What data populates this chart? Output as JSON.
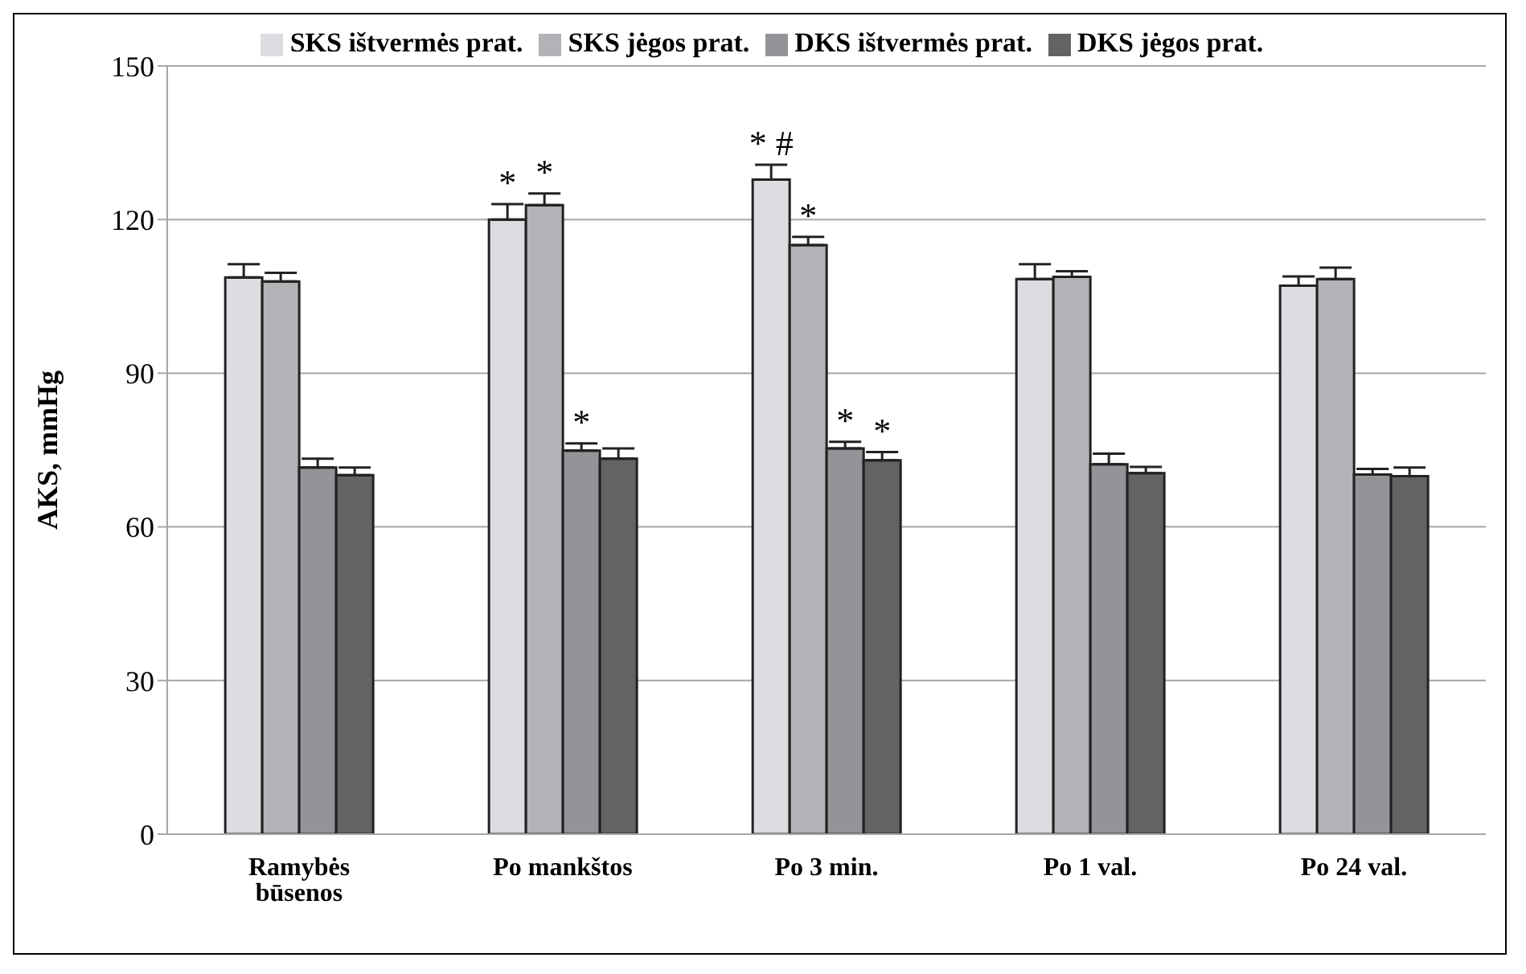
{
  "chart_data": {
    "type": "bar",
    "ylabel": "AKS, mmHg",
    "categories": [
      "Ramybės būsenos",
      "Po mankštos",
      "Po 3 min.",
      "Po 1 val.",
      "Po 24 val."
    ],
    "series": [
      {
        "name": "SKS ištvermės prat.",
        "color": "#dcdde0",
        "values": [
          108.7,
          120,
          127.8,
          108.4,
          107.1
        ],
        "errors": [
          [
            108.7,
            111.3
          ],
          [
            120,
            123
          ],
          [
            127.8,
            130.7
          ],
          [
            108.4,
            111.3
          ],
          [
            107.1,
            108.9
          ]
        ],
        "value_labels": [
          null,
          "*",
          "* #",
          null,
          null
        ]
      },
      {
        "name": "SKS jėgos prat.",
        "color": "#b2b3b7",
        "values": [
          107.9,
          122.8,
          115,
          108.8,
          108.4
        ],
        "errors": [
          [
            107.9,
            109.6
          ],
          [
            122.8,
            125.1
          ],
          [
            115,
            116.6
          ],
          [
            108.8,
            109.9
          ],
          [
            108.4,
            110.6
          ]
        ],
        "value_labels": [
          null,
          "*",
          "*",
          null,
          null
        ]
      },
      {
        "name": "DKS ištvermės prat.",
        "color": "#939498",
        "values": [
          71.6,
          74.9,
          75.3,
          72.2,
          70.2
        ],
        "errors": [
          [
            71.6,
            73.3
          ],
          [
            74.9,
            76.3
          ],
          [
            75.3,
            76.6
          ],
          [
            72.2,
            74.3
          ],
          [
            70.2,
            71.3
          ]
        ],
        "value_labels": [
          null,
          "*",
          "*",
          null,
          null
        ]
      },
      {
        "name": "DKS jėgos prat.",
        "color": "#636365",
        "values": [
          70.1,
          73.3,
          73,
          70.5,
          69.9
        ],
        "errors": [
          [
            70.1,
            71.6
          ],
          [
            73.3,
            75.3
          ],
          [
            73,
            74.6
          ],
          [
            70.5,
            71.7
          ],
          [
            69.9,
            71.6
          ]
        ],
        "value_labels": [
          null,
          null,
          "*",
          null,
          null
        ]
      }
    ],
    "ylim": [
      0,
      150
    ],
    "yticks": [
      0,
      30,
      60,
      90,
      120,
      150
    ],
    "grid": "y",
    "legend": "top"
  }
}
